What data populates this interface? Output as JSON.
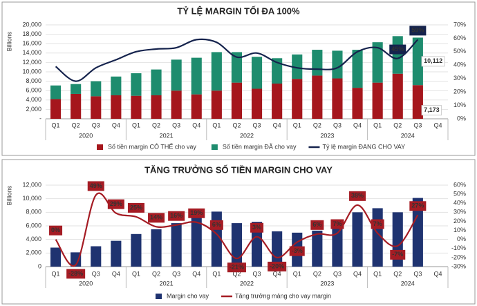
{
  "chart_data": [
    {
      "type": "combo",
      "title": "TỶ LỆ MARGIN TỐI ĐA 100%",
      "y_label": "Billions",
      "stacked": true,
      "categories": [
        "Q1",
        "Q2",
        "Q3",
        "Q4",
        "Q1",
        "Q2",
        "Q3",
        "Q4",
        "Q1",
        "Q2",
        "Q3",
        "Q4",
        "Q1",
        "Q2",
        "Q3",
        "Q4",
        "Q1",
        "Q2",
        "Q3",
        "Q4"
      ],
      "years": [
        "2020",
        "2021",
        "2022",
        "2023",
        "2024"
      ],
      "series": [
        {
          "name": "Số tiền margin CÓ THỂ cho vay",
          "color": "#a5161c",
          "type": "bar",
          "values": [
            4200,
            5300,
            4800,
            5000,
            4900,
            5000,
            6000,
            5200,
            6000,
            7700,
            6400,
            7500,
            8500,
            9200,
            8600,
            6600,
            7700,
            9600,
            7173,
            null
          ],
          "value_labels": [
            null,
            null,
            null,
            null,
            null,
            null,
            null,
            null,
            null,
            null,
            null,
            null,
            null,
            null,
            null,
            null,
            null,
            null,
            "7,173",
            null
          ]
        },
        {
          "name": "Số tiền margin ĐÃ cho vay",
          "color": "#1e8c6e",
          "type": "bar",
          "values": [
            2900,
            2100,
            3200,
            4000,
            4800,
            5500,
            6600,
            7800,
            8200,
            6500,
            6800,
            5400,
            5200,
            5500,
            5900,
            8100,
            8600,
            8000,
            10112,
            null
          ],
          "value_labels": [
            null,
            null,
            null,
            null,
            null,
            null,
            null,
            null,
            null,
            null,
            null,
            null,
            null,
            null,
            null,
            null,
            null,
            null,
            "10,112",
            null
          ]
        },
        {
          "name": "Tỷ lệ margin ĐANG CHO VAY",
          "color": "#15234d",
          "type": "line",
          "axis": "y2",
          "values": [
            39,
            28,
            38,
            44,
            50,
            52,
            53,
            59,
            57,
            46,
            49,
            42,
            38,
            37,
            38,
            50,
            53,
            45,
            59,
            null
          ],
          "value_labels": [
            null,
            null,
            null,
            null,
            null,
            null,
            null,
            null,
            null,
            null,
            null,
            null,
            null,
            null,
            null,
            null,
            null,
            "45%",
            "59%",
            null
          ]
        }
      ],
      "ylim": [
        0,
        20000
      ],
      "yticks": [
        {
          "value": 0,
          "label": "-"
        },
        {
          "value": 2000,
          "label": "2,000"
        },
        {
          "value": 4000,
          "label": "4,000"
        },
        {
          "value": 6000,
          "label": "6,000"
        },
        {
          "value": 8000,
          "label": "8,000"
        },
        {
          "value": 10000,
          "label": "10,000"
        },
        {
          "value": 12000,
          "label": "12,000"
        },
        {
          "value": 14000,
          "label": "14,000"
        },
        {
          "value": 16000,
          "label": "16,000"
        },
        {
          "value": 18000,
          "label": "18,000"
        },
        {
          "value": 20000,
          "label": "20,000"
        }
      ],
      "y2lim": [
        0,
        70
      ],
      "y2ticks": [
        {
          "value": 0,
          "label": "0%"
        },
        {
          "value": 10,
          "label": "10%"
        },
        {
          "value": 20,
          "label": "20%"
        },
        {
          "value": 30,
          "label": "30%"
        },
        {
          "value": 40,
          "label": "40%"
        },
        {
          "value": 50,
          "label": "50%"
        },
        {
          "value": 60,
          "label": "60%"
        },
        {
          "value": 70,
          "label": "70%"
        }
      ],
      "grid": true
    },
    {
      "type": "combo",
      "title": "TĂNG TRƯỞNG SỐ TIỀN MARGIN CHO VAY",
      "y_label": "Billions",
      "stacked": false,
      "categories": [
        "Q1",
        "Q2",
        "Q3",
        "Q4",
        "Q1",
        "Q2",
        "Q3",
        "Q4",
        "Q1",
        "Q2",
        "Q3",
        "Q4",
        "Q1",
        "Q2",
        "Q3",
        "Q4",
        "Q1",
        "Q2",
        "Q3",
        "Q4"
      ],
      "years": [
        "2020",
        "2021",
        "2022",
        "2023",
        "2024"
      ],
      "series": [
        {
          "name": "Margin cho vay",
          "color": "#1f3370",
          "type": "bar",
          "values": [
            2800,
            2100,
            3000,
            3800,
            4800,
            5500,
            6400,
            7700,
            8100,
            6400,
            6600,
            5200,
            5000,
            5300,
            5700,
            8000,
            8600,
            8000,
            10112,
            null
          ]
        },
        {
          "name": "Tăng trưởng mảng cho vay margin",
          "color": "#a51c24",
          "type": "line",
          "axis": "y2",
          "values": [
            0,
            -28,
            49,
            29,
            25,
            14,
            16,
            19,
            6,
            -21,
            3,
            -20,
            -3,
            6,
            7,
            38,
            7,
            -7,
            27,
            null
          ],
          "value_labels": [
            "0%",
            "-28%",
            "49%",
            "29%",
            "25%",
            "14%",
            "16%",
            "19%",
            "6%",
            "-21%",
            "3%",
            "-20%",
            "-3%",
            "6%",
            "7%",
            "38%",
            "7%",
            "-7%",
            "27%",
            null
          ]
        }
      ],
      "ylim": [
        0,
        12000
      ],
      "yticks": [
        0,
        {
          "value": 2000,
          "label": "2,000"
        },
        {
          "value": 4000,
          "label": "4,000"
        },
        {
          "value": 6000,
          "label": "6,000"
        },
        {
          "value": 8000,
          "label": "8,000"
        },
        {
          "value": 10000,
          "label": "10,000"
        },
        {
          "value": 12000,
          "label": "12,000"
        }
      ],
      "y2lim": [
        -30,
        60
      ],
      "y2ticks": [
        {
          "value": -30,
          "label": "-30%"
        },
        {
          "value": -20,
          "label": "-20%"
        },
        {
          "value": -10,
          "label": "-10%"
        },
        {
          "value": 0,
          "label": "0%"
        },
        {
          "value": 10,
          "label": "10%"
        },
        {
          "value": 20,
          "label": "20%"
        },
        {
          "value": 30,
          "label": "30%"
        },
        {
          "value": 40,
          "label": "40%"
        },
        {
          "value": 50,
          "label": "50%"
        },
        {
          "value": 60,
          "label": "60%"
        }
      ],
      "grid": true
    }
  ]
}
